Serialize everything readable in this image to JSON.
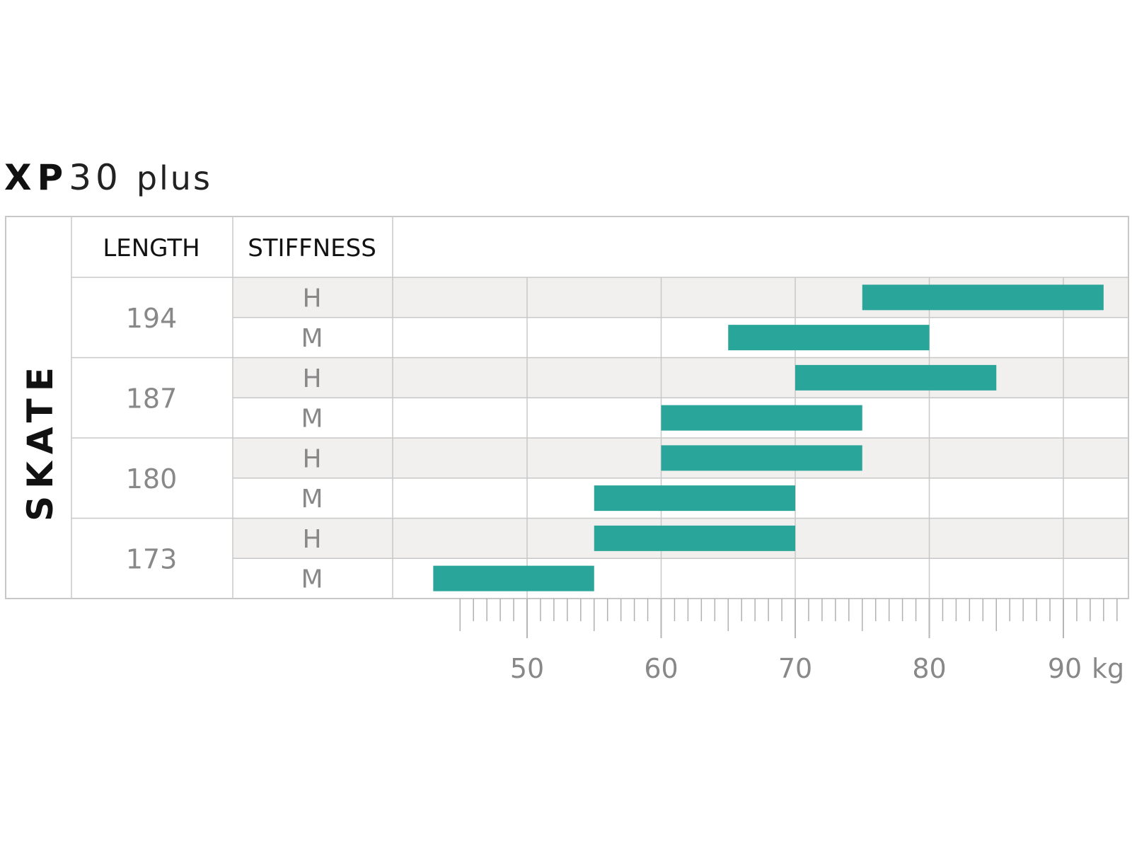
{
  "title": {
    "brand_bold": "XP",
    "model": "30",
    "suffix": "plus"
  },
  "chart_data": {
    "type": "bar",
    "orientation": "horizontal-range",
    "section_label": "SKATE",
    "headers": {
      "length": "LENGTH",
      "stiffness": "STIFFNESS"
    },
    "unit": "kg",
    "xlim": [
      40,
      95
    ],
    "x_ticks": [
      50,
      60,
      70,
      80,
      90
    ],
    "grid": true,
    "bar_color": "#2aa59a",
    "groups": [
      {
        "length": "194",
        "rows": [
          {
            "stiffness": "H",
            "range": [
              75,
              93
            ]
          },
          {
            "stiffness": "M",
            "range": [
              65,
              80
            ]
          }
        ]
      },
      {
        "length": "187",
        "rows": [
          {
            "stiffness": "H",
            "range": [
              70,
              85
            ]
          },
          {
            "stiffness": "M",
            "range": [
              60,
              75
            ]
          }
        ]
      },
      {
        "length": "180",
        "rows": [
          {
            "stiffness": "H",
            "range": [
              60,
              75
            ]
          },
          {
            "stiffness": "M",
            "range": [
              55,
              70
            ]
          }
        ]
      },
      {
        "length": "173",
        "rows": [
          {
            "stiffness": "H",
            "range": [
              55,
              70
            ]
          },
          {
            "stiffness": "M",
            "range": [
              43,
              55
            ]
          }
        ]
      }
    ]
  }
}
